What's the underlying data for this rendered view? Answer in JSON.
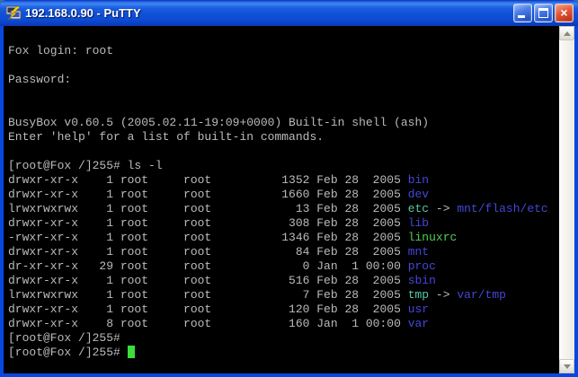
{
  "window": {
    "title": "192.168.0.90 - PuTTY",
    "controls": {
      "minimize": "minimize",
      "maximize": "maximize",
      "close": "close"
    }
  },
  "colors": {
    "titlebar_blue": "#1253d8",
    "border_blue": "#0847e0",
    "terminal_bg": "#000000",
    "terminal_fg": "#bbbbbb",
    "directory_blue": "#4646d8",
    "symlink_cyan": "#55c8aa",
    "executable_green": "#55cc55",
    "cursor_green": "#3ddd3d",
    "close_button_red": "#d8472b"
  },
  "terminal": {
    "lines": [
      {
        "text": ""
      },
      {
        "text": "Fox login: root"
      },
      {
        "text": ""
      },
      {
        "text": "Password:"
      },
      {
        "text": ""
      },
      {
        "text": ""
      },
      {
        "text": "BusyBox v0.60.5 (2005.02.11-19:09+0000) Built-in shell (ash)"
      },
      {
        "text": "Enter 'help' for a list of built-in commands."
      },
      {
        "text": ""
      },
      {
        "text": "[root@Fox /]255# ls -l"
      },
      {
        "ls": {
          "perms": "drwxr-xr-x",
          "links": "1",
          "owner": "root",
          "group": "root",
          "size": "1352",
          "date": "Feb 28  2005",
          "name": "bin",
          "type": "dir"
        }
      },
      {
        "ls": {
          "perms": "drwxr-xr-x",
          "links": "1",
          "owner": "root",
          "group": "root",
          "size": "1660",
          "date": "Feb 28  2005",
          "name": "dev",
          "type": "dir"
        }
      },
      {
        "ls": {
          "perms": "lrwxrwxrwx",
          "links": "1",
          "owner": "root",
          "group": "root",
          "size": "13",
          "date": "Feb 28  2005",
          "name": "etc",
          "type": "link",
          "target": "mnt/flash/etc"
        }
      },
      {
        "ls": {
          "perms": "drwxr-xr-x",
          "links": "1",
          "owner": "root",
          "group": "root",
          "size": "308",
          "date": "Feb 28  2005",
          "name": "lib",
          "type": "dir"
        }
      },
      {
        "ls": {
          "perms": "-rwxr-xr-x",
          "links": "1",
          "owner": "root",
          "group": "root",
          "size": "1346",
          "date": "Feb 28  2005",
          "name": "linuxrc",
          "type": "exec"
        }
      },
      {
        "ls": {
          "perms": "drwxr-xr-x",
          "links": "1",
          "owner": "root",
          "group": "root",
          "size": "84",
          "date": "Feb 28  2005",
          "name": "mnt",
          "type": "dir"
        }
      },
      {
        "ls": {
          "perms": "dr-xr-xr-x",
          "links": "29",
          "owner": "root",
          "group": "root",
          "size": "0",
          "date": "Jan  1 00:00",
          "name": "proc",
          "type": "dir"
        }
      },
      {
        "ls": {
          "perms": "drwxr-xr-x",
          "links": "1",
          "owner": "root",
          "group": "root",
          "size": "516",
          "date": "Feb 28  2005",
          "name": "sbin",
          "type": "dir"
        }
      },
      {
        "ls": {
          "perms": "lrwxrwxrwx",
          "links": "1",
          "owner": "root",
          "group": "root",
          "size": "7",
          "date": "Feb 28  2005",
          "name": "tmp",
          "type": "link",
          "target": "var/tmp"
        }
      },
      {
        "ls": {
          "perms": "drwxr-xr-x",
          "links": "1",
          "owner": "root",
          "group": "root",
          "size": "120",
          "date": "Feb 28  2005",
          "name": "usr",
          "type": "dir"
        }
      },
      {
        "ls": {
          "perms": "drwxr-xr-x",
          "links": "8",
          "owner": "root",
          "group": "root",
          "size": "160",
          "date": "Jan  1 00:00",
          "name": "var",
          "type": "dir"
        }
      },
      {
        "text": "[root@Fox /]255#"
      },
      {
        "text": "[root@Fox /]255# ",
        "cursor": true
      }
    ]
  }
}
